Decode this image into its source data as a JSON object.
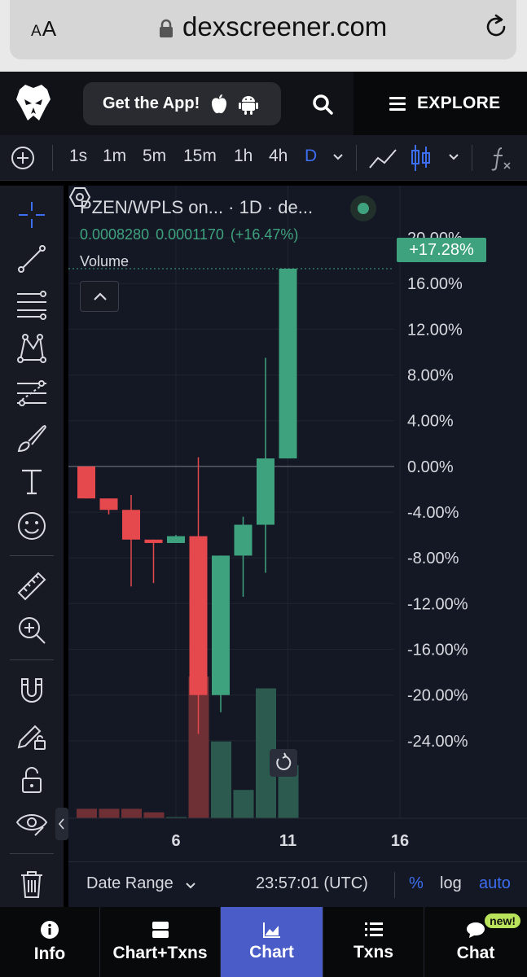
{
  "browser": {
    "aa_label_small": "A",
    "aa_label_large": "A",
    "url": "dexscreener.com"
  },
  "header": {
    "get_app_label": "Get the App!",
    "explore_label": "EXPLORE"
  },
  "toolbar": {
    "intervals": [
      "1s",
      "1m",
      "5m",
      "15m",
      "1h",
      "4h",
      "D"
    ],
    "active_interval": "D"
  },
  "chart": {
    "title": "PZEN/WPLS on... · 1D · de...",
    "price": "0.0008280",
    "change_abs": "0.0001170",
    "change_pct": "(+16.47%)",
    "volume_label": "Volume",
    "current_tag": "+17.28%",
    "date_range_label": "Date Range",
    "clock": "23:57:01 (UTC)",
    "pct_toggle": "%",
    "log_toggle": "log",
    "auto_toggle": "auto"
  },
  "chart_data": {
    "type": "candlestick",
    "title": "",
    "y_axis_unit": "%",
    "ylim": [
      -27,
      22
    ],
    "y_ticks": [
      "20.00%",
      "16.00%",
      "12.00%",
      "8.00%",
      "4.00%",
      "0.00%",
      "-4.00%",
      "-8.00%",
      "-12.00%",
      "-16.00%",
      "-20.00%",
      "-24.00%"
    ],
    "x_ticks": [
      "6",
      "11",
      "16"
    ],
    "candles": [
      {
        "x": 2,
        "open": 0.0,
        "high": 0.0,
        "low": -2.8,
        "close": -2.8
      },
      {
        "x": 3,
        "open": -2.8,
        "high": -2.8,
        "low": -4.2,
        "close": -3.8
      },
      {
        "x": 4,
        "open": -3.8,
        "high": -2.5,
        "low": -10.5,
        "close": -6.4
      },
      {
        "x": 5,
        "open": -6.4,
        "high": -6.4,
        "low": -10.2,
        "close": -6.7
      },
      {
        "x": 6,
        "open": -6.7,
        "high": -6.0,
        "low": -6.7,
        "close": -6.1
      },
      {
        "x": 7,
        "open": -6.1,
        "high": 0.8,
        "low": -23.4,
        "close": -20.0
      },
      {
        "x": 8,
        "open": -20.0,
        "high": -7.8,
        "low": -21.5,
        "close": -7.8
      },
      {
        "x": 9,
        "open": -7.8,
        "high": -4.4,
        "low": -11.4,
        "close": -5.1
      },
      {
        "x": 10,
        "open": -5.1,
        "high": 9.5,
        "low": -9.3,
        "close": 0.7
      },
      {
        "x": 11,
        "open": 0.7,
        "high": 17.3,
        "low": 0.7,
        "close": 17.3
      }
    ],
    "volumes": [
      {
        "x": 2,
        "dir": "down",
        "value": 0.8
      },
      {
        "x": 3,
        "dir": "down",
        "value": 0.8
      },
      {
        "x": 4,
        "dir": "down",
        "value": 0.8
      },
      {
        "x": 5,
        "dir": "down",
        "value": 0.5
      },
      {
        "x": 6,
        "dir": "up",
        "value": 0.1
      },
      {
        "x": 7,
        "dir": "down",
        "value": 12.0
      },
      {
        "x": 8,
        "dir": "up",
        "value": 6.5
      },
      {
        "x": 9,
        "dir": "up",
        "value": 2.4
      },
      {
        "x": 10,
        "dir": "up",
        "value": 11.0
      },
      {
        "x": 11,
        "dir": "up",
        "value": 4.5
      }
    ],
    "colors": {
      "up": "#3fa27f",
      "down": "#e5484d",
      "volume_up": "#2c5a4e",
      "volume_down": "#6e2f35"
    }
  },
  "tabs": [
    {
      "label": "Info",
      "icon": "info-icon"
    },
    {
      "label": "Chart+Txns",
      "icon": "chart-txns-icon"
    },
    {
      "label": "Chart",
      "icon": "chart-icon",
      "active": true
    },
    {
      "label": "Txns",
      "icon": "list-icon"
    },
    {
      "label": "Chat",
      "icon": "chat-icon",
      "badge": "new!"
    }
  ]
}
